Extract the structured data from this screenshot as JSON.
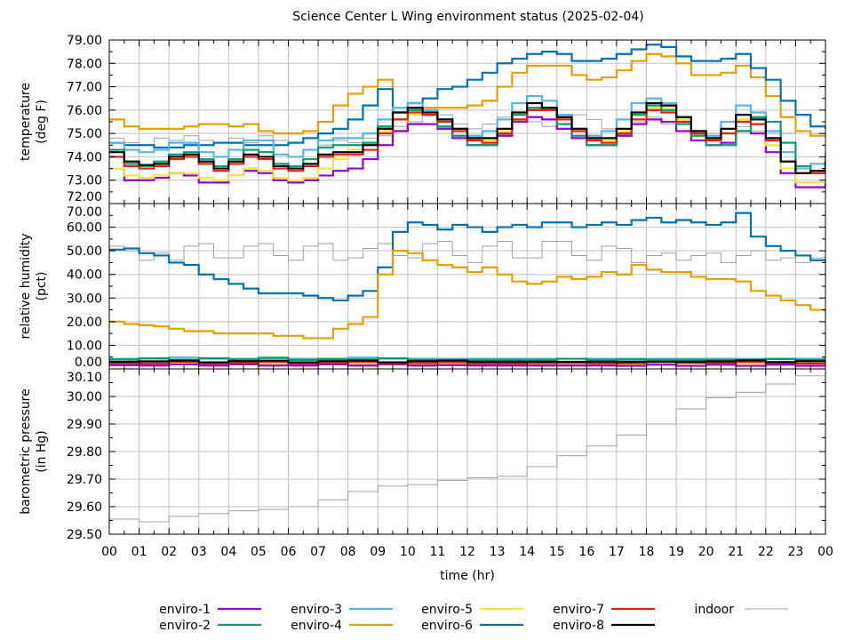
{
  "chart_data": {
    "type": "line",
    "title": "Science Center L Wing environment status (2025-02-04)",
    "xlabel": "time (hr)",
    "xlim": [
      0,
      24
    ],
    "x_tick_labels": [
      "00",
      "01",
      "02",
      "03",
      "04",
      "05",
      "06",
      "07",
      "08",
      "09",
      "10",
      "11",
      "12",
      "13",
      "14",
      "15",
      "16",
      "17",
      "18",
      "19",
      "20",
      "21",
      "22",
      "23",
      "00"
    ],
    "grid": true,
    "legend_placement": "bottom",
    "legend": [
      {
        "name": "enviro-1",
        "color": "#9400d3"
      },
      {
        "name": "enviro-2",
        "color": "#009e73"
      },
      {
        "name": "enviro-3",
        "color": "#56b4e9"
      },
      {
        "name": "enviro-4",
        "color": "#e69f00"
      },
      {
        "name": "enviro-5",
        "color": "#f0e442"
      },
      {
        "name": "enviro-6",
        "color": "#0072b2"
      },
      {
        "name": "enviro-7",
        "color": "#e51e10"
      },
      {
        "name": "enviro-8",
        "color": "#000000"
      },
      {
        "name": "indoor",
        "color": "#a0a0a0"
      }
    ],
    "panels": [
      {
        "ylabel": [
          "temperature",
          "(deg F)"
        ],
        "ylim": [
          72,
          79
        ],
        "yticks": [
          72,
          73,
          74,
          75,
          76,
          77,
          78,
          79
        ],
        "ytick_labels": [
          "72.00",
          "73.00",
          "74.00",
          "75.00",
          "76.00",
          "77.00",
          "78.00",
          "79.00"
        ],
        "series": [
          {
            "name": "indoor",
            "dt": 0.5,
            "values": [
              74.8,
              74.6,
              74.5,
              74.8,
              74.7,
              74.9,
              74.7,
              74.6,
              74.8,
              74.6,
              74.9,
              74.7,
              74.6,
              74.8,
              74.5,
              74.7,
              74.6,
              74.8,
              74.9,
              75.3,
              75.5,
              75.8,
              75.8,
              75.4,
              75.2,
              75.4,
              75.7,
              75.9,
              75.5,
              75.3,
              75.4,
              75.8,
              75.6,
              75.2,
              75.2,
              75.5,
              75.7,
              75.4,
              75.1,
              75.1,
              75.0,
              75.2,
              75.3,
              75.1,
              75.0,
              75.0,
              75.1,
              75.0,
              75.2
            ]
          },
          {
            "name": "enviro-4",
            "dt": 0.5,
            "values": [
              75.6,
              75.3,
              75.2,
              75.2,
              75.2,
              75.3,
              75.4,
              75.4,
              75.3,
              75.4,
              75.1,
              75.0,
              75.0,
              75.1,
              75.5,
              76.2,
              76.7,
              77.0,
              77.3,
              75.1,
              76.0,
              76.1,
              76.1,
              76.1,
              76.2,
              76.4,
              77.0,
              77.6,
              77.9,
              77.9,
              77.9,
              77.5,
              77.3,
              77.4,
              77.7,
              78.1,
              78.4,
              78.3,
              78.0,
              77.5,
              77.5,
              77.6,
              77.9,
              77.4,
              76.6,
              75.7,
              75.1,
              74.9,
              74.9
            ]
          },
          {
            "name": "enviro-6",
            "dt": 0.5,
            "values": [
              74.6,
              74.5,
              74.5,
              74.4,
              74.4,
              74.5,
              74.5,
              74.6,
              74.6,
              74.5,
              74.5,
              74.5,
              74.6,
              74.8,
              75.0,
              75.2,
              75.6,
              76.2,
              76.9,
              75.6,
              76.3,
              76.5,
              76.9,
              77.0,
              77.3,
              77.6,
              78.0,
              78.2,
              78.4,
              78.5,
              78.4,
              78.1,
              78.1,
              78.2,
              78.4,
              78.6,
              78.8,
              78.7,
              78.3,
              78.1,
              78.1,
              78.2,
              78.4,
              77.8,
              77.3,
              76.4,
              75.8,
              75.3,
              75.2
            ]
          },
          {
            "name": "enviro-1",
            "dt": 0.5,
            "values": [
              73.5,
              73.0,
              73.0,
              73.1,
              73.3,
              73.2,
              72.9,
              72.9,
              73.2,
              73.4,
              73.3,
              73.0,
              72.9,
              73.0,
              73.2,
              73.4,
              73.5,
              73.9,
              74.5,
              75.1,
              75.4,
              75.4,
              75.2,
              74.8,
              74.5,
              74.5,
              74.9,
              75.5,
              75.7,
              75.6,
              75.2,
              74.8,
              74.5,
              74.5,
              74.9,
              75.4,
              75.6,
              75.5,
              75.1,
              74.7,
              74.5,
              74.6,
              75.1,
              75.0,
              74.2,
              73.3,
              72.7,
              72.7,
              72.9
            ]
          },
          {
            "name": "enviro-5",
            "dt": 0.5,
            "values": [
              73.5,
              73.2,
              73.1,
              73.2,
              73.3,
              73.3,
              73.1,
              73.0,
              73.2,
              73.5,
              73.4,
              73.1,
              73.0,
              73.1,
              73.5,
              73.9,
              74.3,
              74.6,
              75.1,
              75.6,
              75.8,
              75.8,
              75.5,
              75.1,
              74.7,
              74.7,
              75.1,
              75.8,
              76.1,
              76.0,
              75.6,
              75.1,
              74.7,
              74.7,
              75.1,
              75.8,
              76.1,
              76.1,
              75.6,
              75.0,
              74.7,
              75.0,
              75.6,
              75.4,
              74.5,
              73.5,
              72.9,
              72.9,
              72.9
            ]
          },
          {
            "name": "enviro-3",
            "dt": 0.5,
            "values": [
              74.6,
              74.3,
              74.2,
              74.3,
              74.6,
              74.6,
              74.2,
              74.0,
              74.3,
              74.7,
              74.7,
              74.1,
              74.0,
              74.3,
              74.7,
              74.8,
              74.8,
              75.0,
              75.6,
              76.1,
              76.3,
              76.0,
              75.6,
              75.2,
              74.9,
              75.1,
              75.6,
              76.3,
              76.6,
              76.4,
              75.8,
              75.2,
              74.9,
              75.1,
              75.6,
              76.3,
              76.5,
              76.3,
              75.7,
              75.1,
              74.9,
              75.5,
              76.2,
              75.9,
              75.1,
              74.2,
              73.5,
              73.7,
              74.2
            ]
          },
          {
            "name": "enviro-2",
            "dt": 0.5,
            "values": [
              74.3,
              73.7,
              73.6,
              73.8,
              74.1,
              74.2,
              73.9,
              73.6,
              73.9,
              74.3,
              74.2,
              73.7,
              73.6,
              73.9,
              74.4,
              74.5,
              74.5,
              74.6,
              75.3,
              75.9,
              76.0,
              75.8,
              75.3,
              74.9,
              74.5,
              74.5,
              75.0,
              75.8,
              76.1,
              76.0,
              75.4,
              74.9,
              74.5,
              74.5,
              75.0,
              75.8,
              76.2,
              76.0,
              75.4,
              74.9,
              74.5,
              74.5,
              75.1,
              75.7,
              75.5,
              74.6,
              73.6,
              73.3,
              73.9
            ]
          },
          {
            "name": "enviro-7",
            "dt": 0.5,
            "values": [
              74.0,
              73.6,
              73.5,
              73.6,
              73.9,
              74.0,
              73.7,
              73.4,
              73.7,
              74.0,
              73.9,
              73.5,
              73.4,
              73.6,
              74.0,
              74.1,
              74.1,
              74.3,
              75.0,
              75.6,
              75.9,
              75.8,
              75.5,
              75.1,
              74.7,
              74.6,
              75.0,
              75.6,
              76.0,
              76.0,
              75.6,
              75.1,
              74.7,
              74.6,
              75.0,
              75.6,
              76.0,
              75.9,
              75.5,
              75.0,
              74.7,
              75.0,
              75.5,
              75.4,
              74.7,
              73.8,
              73.3,
              73.3,
              73.7
            ]
          },
          {
            "name": "enviro-8",
            "dt": 0.5,
            "values": [
              74.2,
              73.8,
              73.65,
              73.7,
              74.0,
              74.1,
              73.8,
              73.5,
              73.8,
              74.1,
              74.0,
              73.6,
              73.5,
              73.7,
              74.1,
              74.2,
              74.2,
              74.5,
              75.2,
              75.9,
              76.1,
              75.9,
              75.6,
              75.2,
              74.8,
              74.8,
              75.2,
              75.9,
              76.3,
              76.1,
              75.7,
              75.2,
              74.8,
              74.8,
              75.2,
              75.9,
              76.3,
              76.2,
              75.7,
              75.1,
              74.8,
              75.2,
              75.8,
              75.6,
              74.8,
              73.8,
              73.3,
              73.4,
              73.8
            ]
          }
        ]
      },
      {
        "ylabel": [
          "relative humidity",
          "(pct)"
        ],
        "ylim": [
          0,
          70
        ],
        "yticks": [
          0,
          10,
          20,
          30,
          40,
          50,
          60,
          70
        ],
        "ytick_labels": [
          "0.00",
          "10.00",
          "20.00",
          "30.00",
          "40.00",
          "50.00",
          "60.00",
          "70.00"
        ],
        "series": [
          {
            "name": "indoor",
            "dt": 0.5,
            "values": [
              52,
              50,
              46,
              49,
              46,
              52,
              53,
              47,
              47,
              52,
              53,
              48,
              46,
              52,
              53,
              46,
              47,
              51,
              53,
              48,
              47,
              53,
              54,
              48,
              45,
              52,
              54,
              47,
              47,
              54,
              54,
              48,
              46,
              52,
              51,
              45,
              48,
              49,
              46,
              48,
              49,
              45,
              48,
              50,
              46,
              47,
              45,
              47,
              44
            ]
          },
          {
            "name": "enviro-6",
            "dt": 0.5,
            "values": [
              50.5,
              51,
              49,
              48,
              45,
              44,
              40,
              38,
              36,
              34,
              32,
              32,
              32,
              31,
              30,
              29,
              31,
              33,
              43,
              58,
              62,
              61,
              59,
              61,
              60,
              58,
              60,
              61,
              60,
              62,
              62,
              60,
              61,
              62,
              61,
              63,
              64,
              62,
              63,
              62,
              61,
              62,
              66,
              56,
              52,
              50,
              48,
              46,
              45
            ]
          },
          {
            "name": "enviro-4",
            "dt": 0.5,
            "values": [
              20,
              19,
              18.5,
              18,
              17,
              16,
              16,
              15,
              15,
              15,
              15,
              14,
              14,
              13,
              13,
              17,
              19,
              22,
              40,
              50,
              49,
              46,
              44,
              43,
              41,
              43,
              40,
              37,
              36,
              37,
              39,
              38,
              39,
              41,
              40,
              44,
              42,
              41,
              41,
              39,
              38,
              38,
              37,
              33,
              31,
              29,
              27,
              25,
              24
            ]
          },
          {
            "name": "enviro-3",
            "dt": 1,
            "values": [
              4.3,
              4.3,
              4.8,
              4.3,
              4.3,
              4.8,
              4.3,
              4.3,
              4.8,
              4.3,
              4.3,
              4.3,
              4.3,
              4.3,
              4.3,
              4.3,
              4.3,
              4.3,
              4.3,
              4.3,
              4.3,
              4.3,
              4.3,
              4.3,
              4.3
            ]
          },
          {
            "name": "enviro-2",
            "dt": 1,
            "values": [
              4.0,
              4.5,
              3.8,
              4.5,
              4.0,
              4.6,
              3.8,
              4.2,
              4.0,
              4.5,
              3.8,
              3.8,
              3.8,
              3.8,
              3.8,
              4.3,
              3.8,
              4.0,
              3.8,
              3.8,
              3.8,
              3.8,
              4.2,
              3.8,
              3.8
            ]
          },
          {
            "name": "enviro-5",
            "dt": 1,
            "values": [
              2.0,
              1.9,
              2.3,
              2.3,
              1.9,
              2.3,
              2.3,
              2.0,
              2.3,
              2.0,
              2.0,
              2.3,
              1.7,
              1.7,
              1.8,
              1.7,
              1.8,
              1.7,
              2.0,
              2.3,
              2.0,
              2.3,
              2.0,
              1.8,
              2.2
            ]
          },
          {
            "name": "enviro-1",
            "dt": 1,
            "values": [
              1.6,
              1.4,
              1.9,
              1.4,
              1.9,
              1.4,
              1.4,
              1.9,
              1.4,
              1.9,
              1.4,
              1.6,
              1.4,
              1.4,
              1.4,
              1.4,
              1.4,
              1.3,
              1.8,
              1.3,
              1.8,
              1.3,
              1.8,
              1.3,
              1.3
            ]
          },
          {
            "name": "enviro-7",
            "dt": 1,
            "values": [
              2.5,
              2.3,
              3.0,
              2.3,
              2.5,
              3.0,
              2.3,
              2.5,
              3.0,
              2.3,
              2.5,
              2.8,
              2.3,
              2.3,
              2.5,
              2.6,
              2.4,
              2.4,
              3.0,
              2.6,
              2.4,
              3.0,
              2.6,
              2.3,
              2.6
            ]
          },
          {
            "name": "enviro-8",
            "dt": 1,
            "values": [
              3.0,
              3.2,
              3.5,
              2.8,
              3.3,
              3.5,
              2.8,
              3.3,
              3.5,
              2.8,
              3.3,
              3.5,
              3.0,
              3.0,
              3.0,
              3.0,
              3.0,
              3.0,
              3.0,
              3.0,
              3.2,
              3.6,
              2.9,
              3.3,
              3.6
            ]
          }
        ]
      },
      {
        "ylabel": [
          "barometric pressure",
          "(in Hg)"
        ],
        "ylim": [
          29.5,
          30.1
        ],
        "yticks": [
          29.5,
          29.6,
          29.7,
          29.8,
          29.9,
          30.0,
          30.1
        ],
        "ytick_labels": [
          "29.50",
          "29.60",
          "29.70",
          "29.80",
          "29.90",
          "30.00",
          "30.10"
        ],
        "series": [
          {
            "name": "indoor",
            "dt": 1,
            "values": [
              29.555,
              29.545,
              29.565,
              29.575,
              29.585,
              29.59,
              29.6,
              29.625,
              29.655,
              29.675,
              29.68,
              29.695,
              29.705,
              29.71,
              29.745,
              29.785,
              29.82,
              29.86,
              29.9,
              29.955,
              29.995,
              30.015,
              30.045,
              30.075,
              30.095
            ]
          }
        ]
      }
    ]
  }
}
